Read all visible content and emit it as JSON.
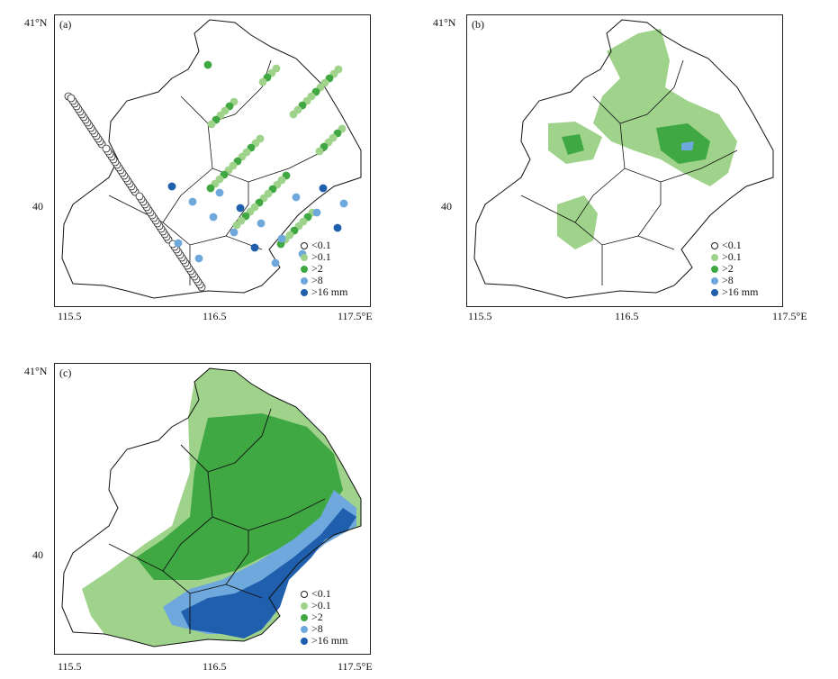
{
  "panels": {
    "a": {
      "tag": "(a)"
    },
    "b": {
      "tag": "(b)"
    },
    "c": {
      "tag": "(c)"
    }
  },
  "axes": {
    "lat_top": "41°N",
    "lat_mid": "40",
    "lon_ticks": [
      "115.5",
      "116.5",
      "117.5°E"
    ]
  },
  "legend": {
    "items": [
      {
        "label": "<0.1",
        "color": "#ffffff",
        "border": "#222222"
      },
      {
        "label": ">0.1",
        "color": "#9fd28a",
        "border": "#9fd28a"
      },
      {
        "label": ">2",
        "color": "#3fa843",
        "border": "#3fa843"
      },
      {
        "label": ">8",
        "color": "#6ea8dc",
        "border": "#6ea8dc"
      },
      {
        "label": ">16 mm",
        "color": "#1f5fae",
        "border": "#1f5fae"
      }
    ]
  },
  "colors": {
    "light_green": "#9fd28a",
    "green": "#3fa843",
    "light_blue": "#6ea8dc",
    "dark_blue": "#1f5fae",
    "boundary": "#111111"
  }
}
